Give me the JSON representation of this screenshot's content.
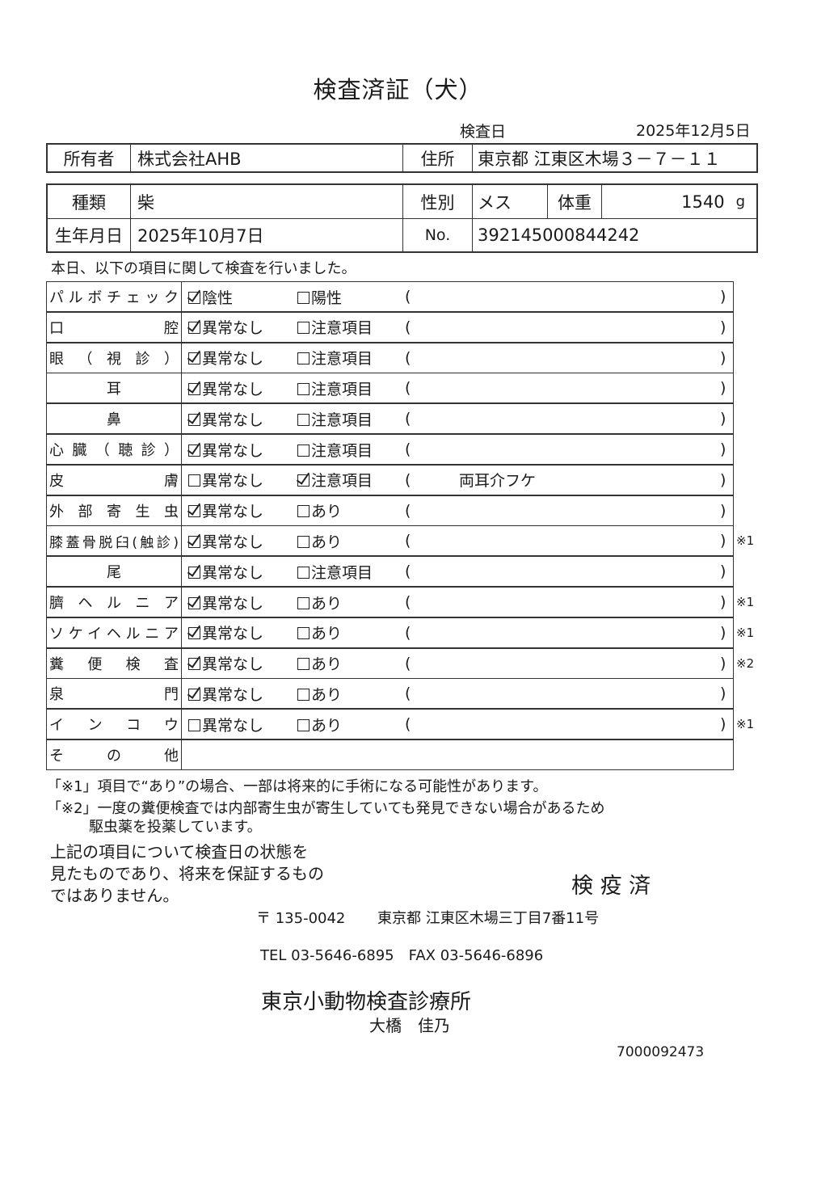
{
  "title": "検査済証（犬）",
  "exam_date_label": "検査日",
  "exam_date": "2025年12月5日",
  "owner_label": "所有者",
  "owner": "株式会社AHB",
  "address_label": "住所",
  "address": "東京都 江東区木場３－７－１１",
  "breed_label": "種類",
  "breed": "柴",
  "sex_label": "性別",
  "sex": "メス",
  "weight_label": "体重",
  "weight": "1540",
  "weight_unit": "g",
  "birth_label": "生年月日",
  "birth": "2025年10月7日",
  "no_label": "No.",
  "no": "392145000844242",
  "intro": "本日、以下の項目に関して検査を行いました。",
  "paren_open": "(",
  "paren_close": ")",
  "items": [
    {
      "label": "パルボチェック",
      "opt1": "陰性",
      "opt2": "陽性",
      "checked": 1,
      "comment": "",
      "note": ""
    },
    {
      "label": "口　　　腔",
      "opt1": "異常なし",
      "opt2": "注意項目",
      "checked": 1,
      "comment": "",
      "note": ""
    },
    {
      "label": "眼（視診）",
      "opt1": "異常なし",
      "opt2": "注意項目",
      "checked": 1,
      "comment": "",
      "note": ""
    },
    {
      "label": "耳",
      "opt1": "異常なし",
      "opt2": "注意項目",
      "checked": 1,
      "comment": "",
      "note": ""
    },
    {
      "label": "鼻",
      "opt1": "異常なし",
      "opt2": "注意項目",
      "checked": 1,
      "comment": "",
      "note": ""
    },
    {
      "label": "心臓（聴診）",
      "opt1": "異常なし",
      "opt2": "注意項目",
      "checked": 1,
      "comment": "",
      "note": ""
    },
    {
      "label": "皮　　　膚",
      "opt1": "異常なし",
      "opt2": "注意項目",
      "checked": 2,
      "comment": "両耳介フケ",
      "note": ""
    },
    {
      "label": "外部寄生虫",
      "opt1": "異常なし",
      "opt2": "あり",
      "checked": 1,
      "comment": "",
      "note": ""
    },
    {
      "label": "膝蓋骨脱臼(触診)",
      "opt1": "異常なし",
      "opt2": "あり",
      "checked": 1,
      "comment": "",
      "note": "※1"
    },
    {
      "label": "尾",
      "opt1": "異常なし",
      "opt2": "注意項目",
      "checked": 1,
      "comment": "",
      "note": ""
    },
    {
      "label": "臍ヘルニア",
      "opt1": "異常なし",
      "opt2": "あり",
      "checked": 1,
      "comment": "",
      "note": "※1"
    },
    {
      "label": "ソケイヘルニア",
      "opt1": "異常なし",
      "opt2": "あり",
      "checked": 1,
      "comment": "",
      "note": "※1"
    },
    {
      "label": "糞便検査",
      "opt1": "異常なし",
      "opt2": "あり",
      "checked": 1,
      "comment": "",
      "note": "※2"
    },
    {
      "label": "泉　　　門",
      "opt1": "異常なし",
      "opt2": "あり",
      "checked": 1,
      "comment": "",
      "note": ""
    },
    {
      "label": "インコウ",
      "opt1": "異常なし",
      "opt2": "あり",
      "checked": 0,
      "comment": "",
      "note": "※1"
    }
  ],
  "other_label": "その他",
  "footnote1": "「※1」項目で“あり”の場合、一部は将来的に手術になる可能性があります。",
  "footnote2a": "「※2」一度の糞便検査では内部寄生虫が寄生していても発見できない場合があるため",
  "footnote2b": "駆虫薬を投薬しています。",
  "disclaimer": [
    "上記の項目について検査日の状態を",
    "見たものであり、将来を保証するもの",
    "ではありません。"
  ],
  "stamp": "検 疫 済",
  "postal": "〒 135-0042",
  "clinic_address": "東京都 江東区木場三丁目7番11号",
  "phone": "TEL 03-5646-6895　FAX 03-5646-6896",
  "clinic_name": "東京小動物検査診療所",
  "person": "大橋　佳乃",
  "doc_id": "7000092473"
}
